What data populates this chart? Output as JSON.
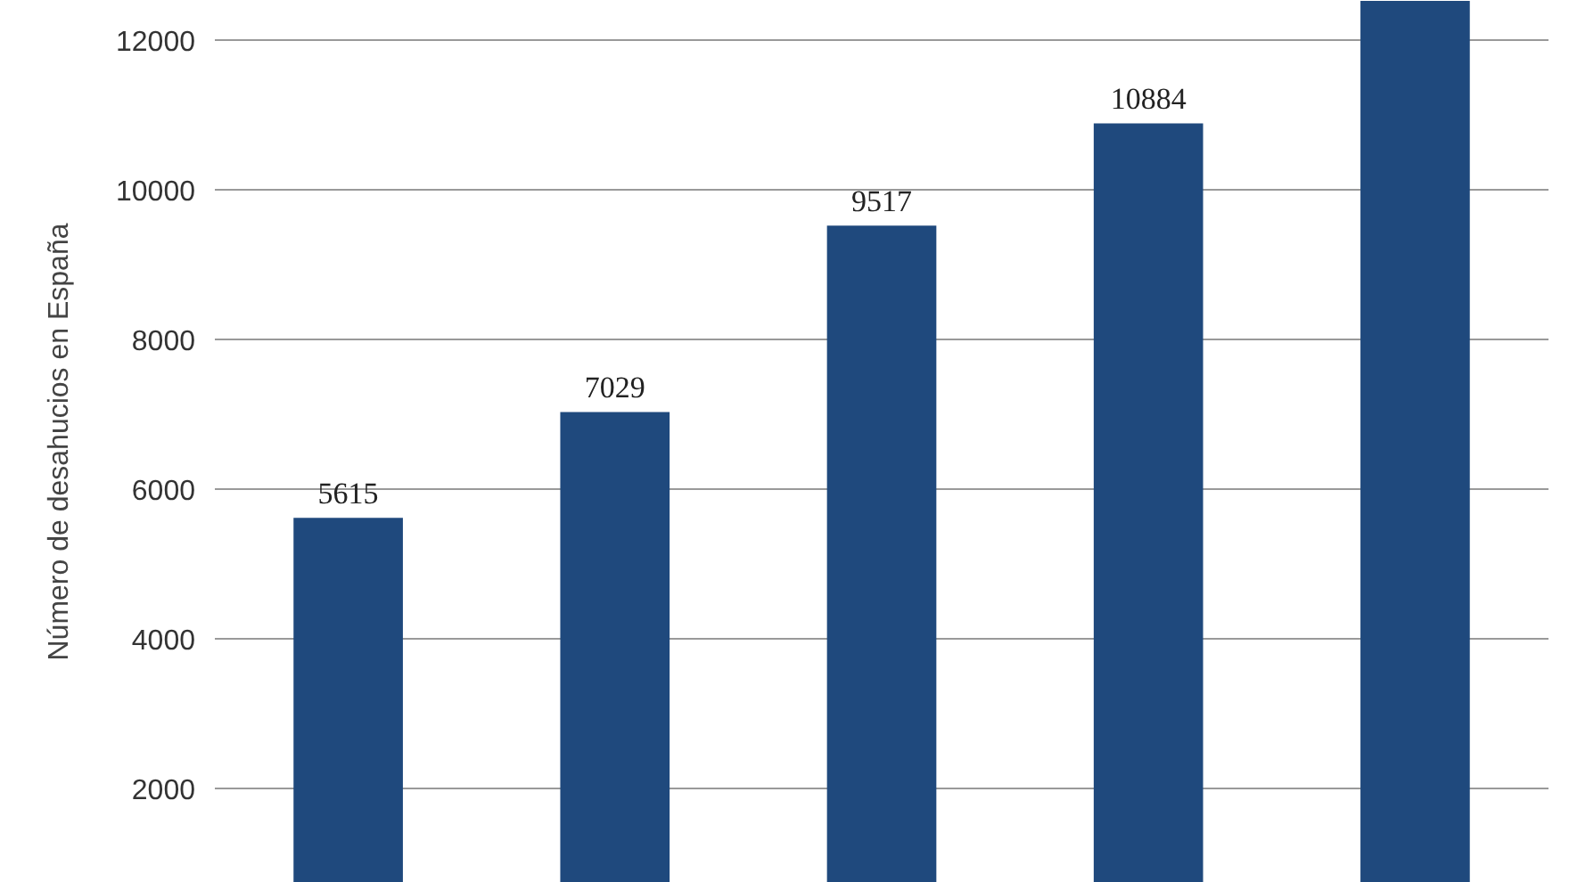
{
  "chart_data": {
    "type": "bar",
    "ylabel": "Número de desahucios en España",
    "categories": [
      null,
      null,
      null,
      null,
      null
    ],
    "values": [
      5615,
      7029,
      9517,
      10884,
      12520
    ],
    "value_labels": [
      "5615",
      "7029",
      "9517",
      "10884",
      null
    ],
    "color": "#1f497d",
    "ylim": [
      740,
      12520
    ],
    "yticks": [
      2000,
      4000,
      6000,
      8000,
      10000,
      12000
    ],
    "grid": "y"
  }
}
